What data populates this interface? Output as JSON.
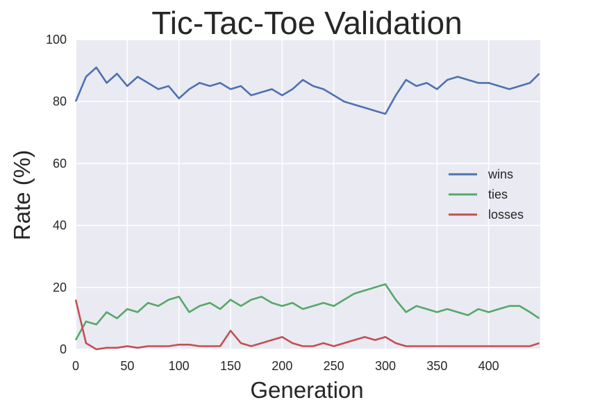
{
  "chart_data": {
    "type": "line",
    "title": "Tic-Tac-Toe Validation",
    "xlabel": "Generation",
    "ylabel": "Rate (%)",
    "xlim": [
      0,
      450
    ],
    "ylim": [
      0,
      100
    ],
    "xticks": [
      "0",
      "50",
      "100",
      "150",
      "200",
      "250",
      "300",
      "350",
      "400"
    ],
    "yticks": [
      "0",
      "20",
      "40",
      "60",
      "80",
      "100"
    ],
    "grid": true,
    "background": "#eaeaf2",
    "legend_position": "center-right",
    "x": [
      0,
      10,
      20,
      30,
      40,
      50,
      60,
      70,
      80,
      90,
      100,
      110,
      120,
      130,
      140,
      150,
      160,
      170,
      180,
      190,
      200,
      210,
      220,
      230,
      240,
      250,
      260,
      270,
      280,
      290,
      300,
      310,
      320,
      330,
      340,
      350,
      360,
      370,
      380,
      390,
      400,
      410,
      420,
      430,
      440,
      449
    ],
    "series": [
      {
        "name": "wins",
        "color": "#4c72b0",
        "values": [
          80,
          88,
          91,
          86,
          89,
          85,
          88,
          86,
          84,
          85,
          81,
          84,
          86,
          85,
          86,
          84,
          85,
          82,
          83,
          84,
          82,
          84,
          87,
          85,
          84,
          82,
          80,
          79,
          78,
          77,
          76,
          82,
          87,
          85,
          86,
          84,
          87,
          88,
          87,
          86,
          86,
          85,
          84,
          85,
          86,
          89
        ]
      },
      {
        "name": "ties",
        "color": "#55a868",
        "values": [
          3,
          9,
          8,
          12,
          10,
          13,
          12,
          15,
          14,
          16,
          17,
          12,
          14,
          15,
          13,
          16,
          14,
          16,
          17,
          15,
          14,
          15,
          13,
          14,
          15,
          14,
          16,
          18,
          19,
          20,
          21,
          16,
          12,
          14,
          13,
          12,
          13,
          12,
          11,
          13,
          12,
          13,
          14,
          14,
          12,
          10
        ]
      },
      {
        "name": "losses",
        "color": "#c44e52",
        "values": [
          16,
          2,
          0,
          0.5,
          0.5,
          1,
          0.5,
          1,
          1,
          1,
          1.5,
          1.5,
          1,
          1,
          1,
          6,
          2,
          1,
          2,
          3,
          4,
          2,
          1,
          1,
          2,
          1,
          2,
          3,
          4,
          3,
          4,
          2,
          1,
          1,
          1,
          1,
          1,
          1,
          1,
          1,
          1,
          1,
          1,
          1,
          1,
          2
        ]
      }
    ]
  }
}
